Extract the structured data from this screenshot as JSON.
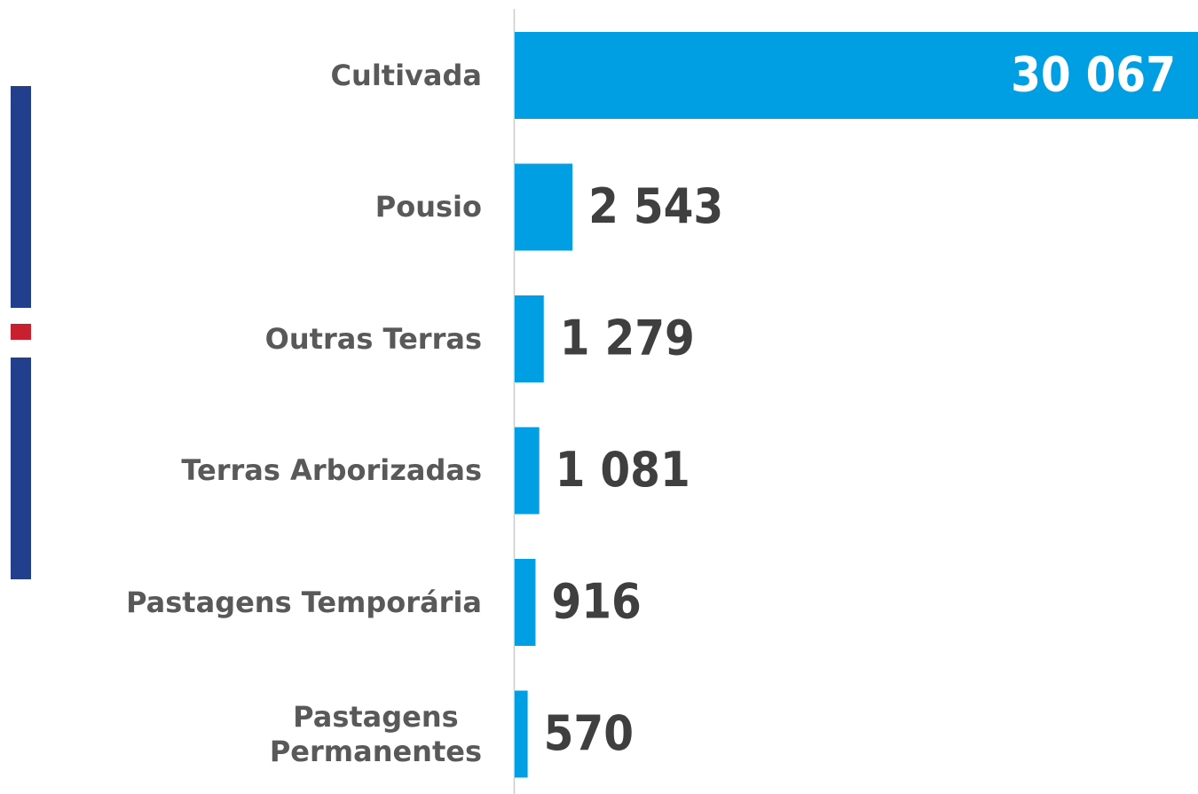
{
  "chart_data": {
    "type": "bar",
    "orientation": "horizontal",
    "categories": [
      "Cultivada",
      "Pousio",
      "Outras Terras",
      "Terras Arborizadas",
      "Pastagens Temporária",
      "Pastagens\nPermanentes"
    ],
    "values": [
      30067,
      2543,
      1279,
      1081,
      916,
      570
    ],
    "value_labels": [
      "30 067",
      "2 543",
      "1 279",
      "1 081",
      "916",
      "570"
    ],
    "color": "#009fe3"
  }
}
